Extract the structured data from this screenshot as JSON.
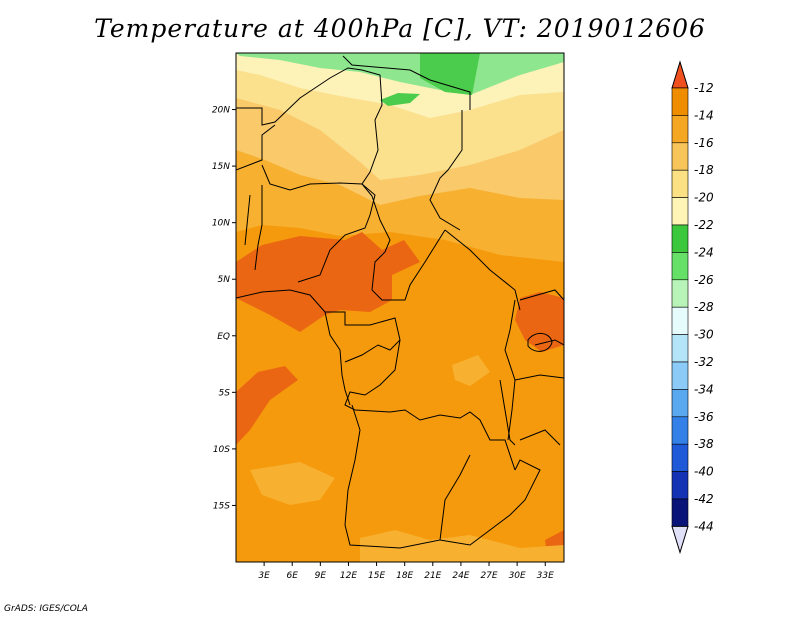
{
  "title": "Temperature at 400hPa [C], VT: 2019012606",
  "credit": "GrADS: IGES/COLA",
  "map": {
    "lon_range": [
      0,
      35
    ],
    "lat_range": [
      -20,
      25
    ],
    "lat_ticks": [
      {
        "value": 20,
        "label": "20N"
      },
      {
        "value": 15,
        "label": "15N"
      },
      {
        "value": 10,
        "label": "10N"
      },
      {
        "value": 5,
        "label": "5N"
      },
      {
        "value": 0,
        "label": "EQ"
      },
      {
        "value": -5,
        "label": "5S"
      },
      {
        "value": -10,
        "label": "10S"
      },
      {
        "value": -15,
        "label": "15S"
      }
    ],
    "lon_ticks": [
      {
        "value": 3,
        "label": "3E"
      },
      {
        "value": 6,
        "label": "6E"
      },
      {
        "value": 9,
        "label": "9E"
      },
      {
        "value": 12,
        "label": "12E"
      },
      {
        "value": 15,
        "label": "15E"
      },
      {
        "value": 18,
        "label": "18E"
      },
      {
        "value": 21,
        "label": "21E"
      },
      {
        "value": 24,
        "label": "24E"
      },
      {
        "value": 27,
        "label": "27E"
      },
      {
        "value": 30,
        "label": "30E"
      },
      {
        "value": 33,
        "label": "33E"
      }
    ]
  },
  "colorbar": {
    "levels": [
      {
        "label": "-12",
        "color": "#e86a1c"
      },
      {
        "label": "-14",
        "color": "#f08c00"
      },
      {
        "label": "-16",
        "color": "#f5a623"
      },
      {
        "label": "-18",
        "color": "#f8c55a"
      },
      {
        "label": "-20",
        "color": "#fbe184"
      },
      {
        "label": "-22",
        "color": "#fdf5b6"
      },
      {
        "label": "-24",
        "color": "#3cc83c"
      },
      {
        "label": "-26",
        "color": "#66e066"
      },
      {
        "label": "-28",
        "color": "#b8f4b8"
      },
      {
        "label": "-30",
        "color": "#e6fcfc"
      },
      {
        "label": "-32",
        "color": "#b4e4f8"
      },
      {
        "label": "-34",
        "color": "#8ccaf8"
      },
      {
        "label": "-36",
        "color": "#5aa8f0"
      },
      {
        "label": "-38",
        "color": "#3280e8"
      },
      {
        "label": "-40",
        "color": "#1e5ad8"
      },
      {
        "label": "-42",
        "color": "#1432b4"
      },
      {
        "label": "-44",
        "color": "#0a1478"
      }
    ],
    "top_color": "#f0501e",
    "bottom_color": "#e0e0f8"
  }
}
